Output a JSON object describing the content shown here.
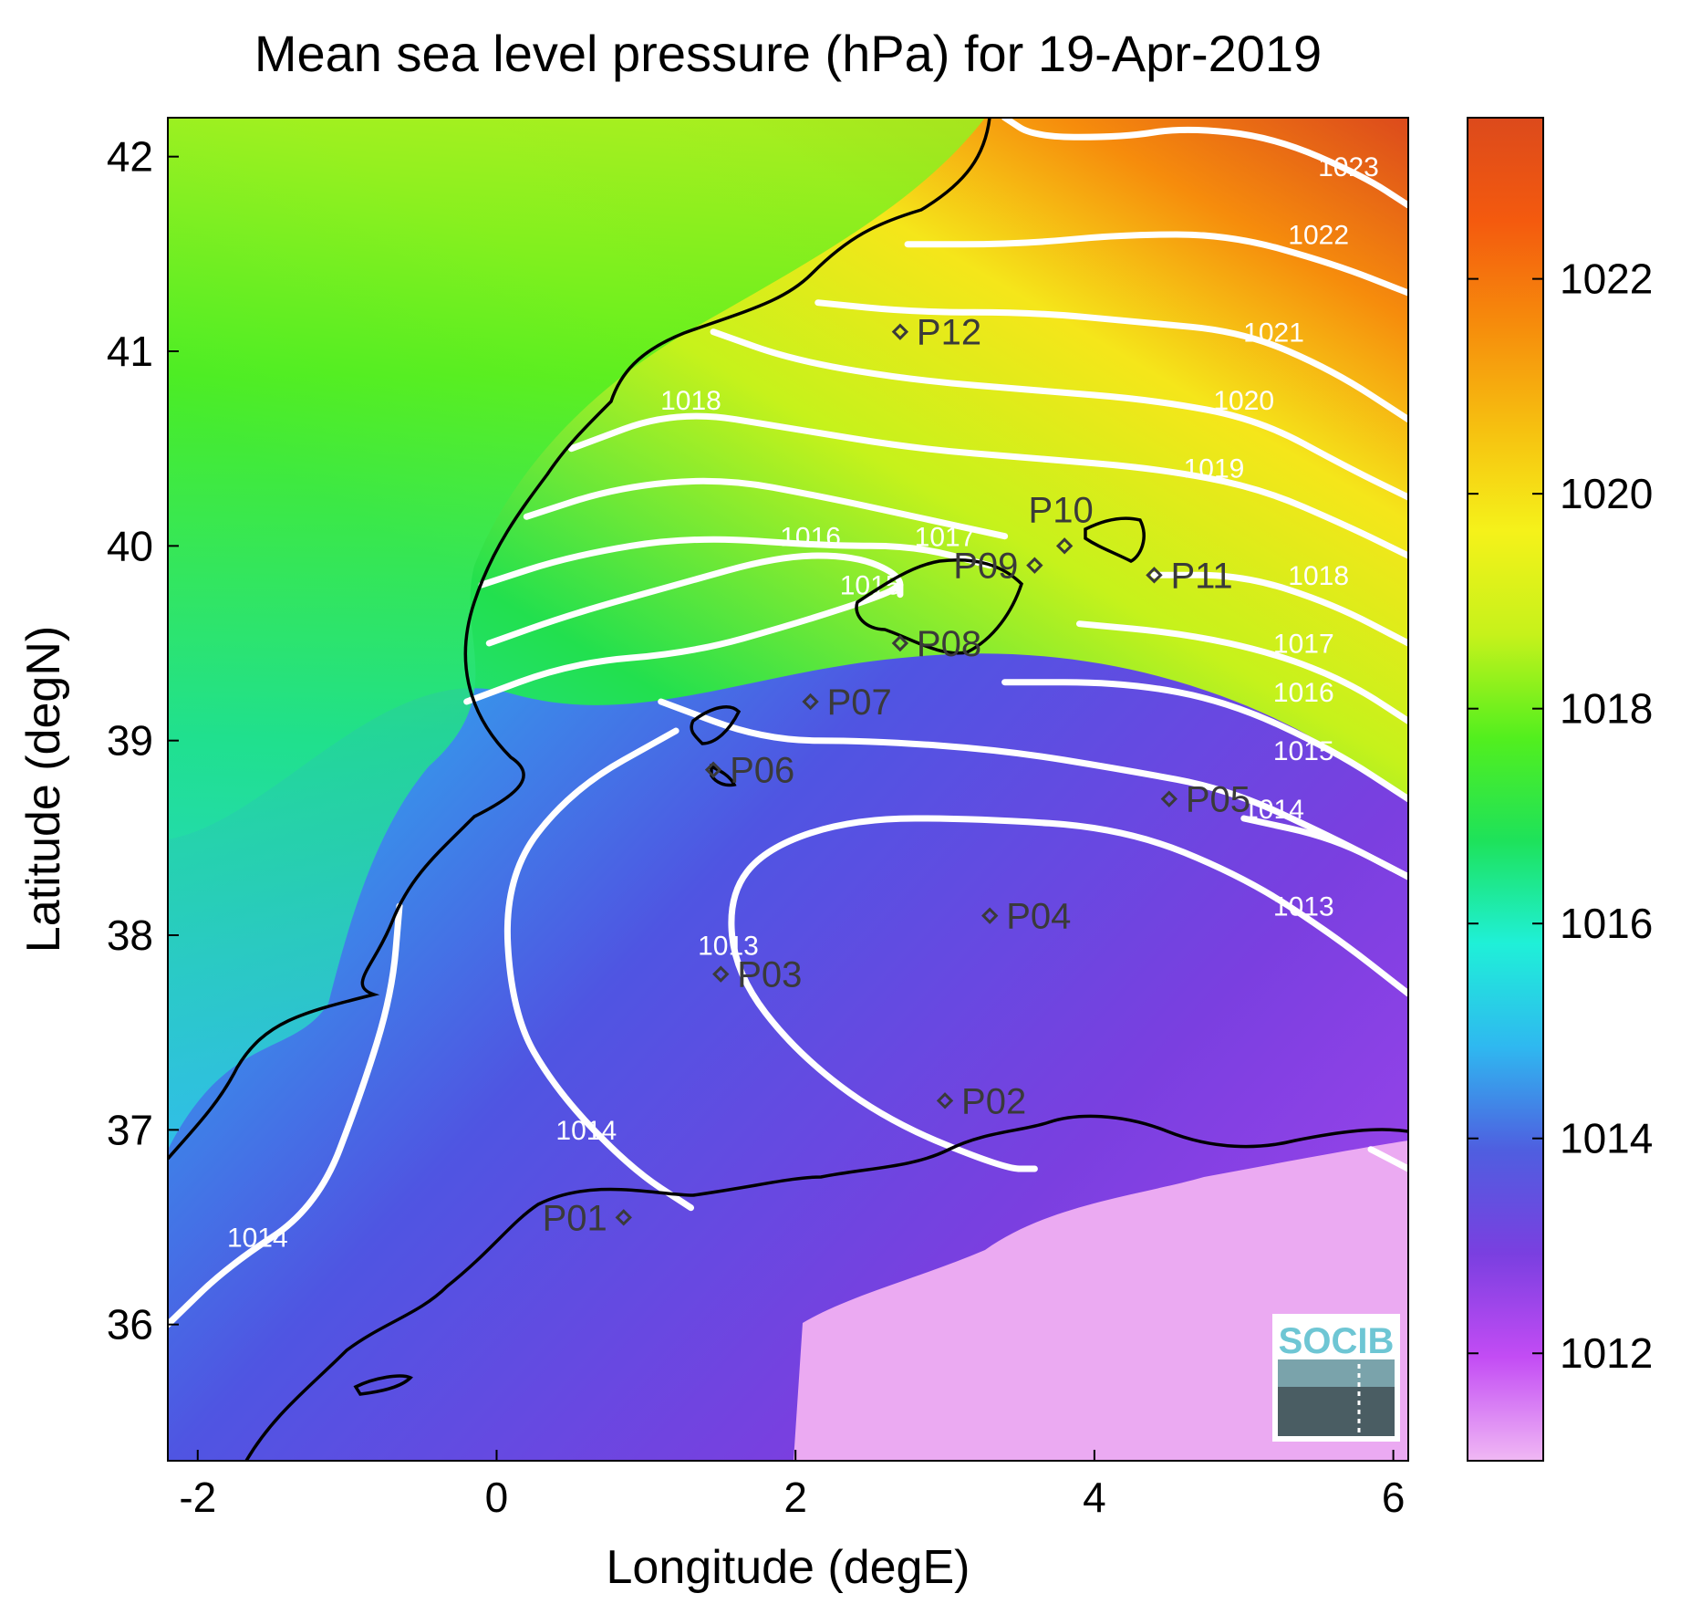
{
  "title": "Mean sea level pressure (hPa) for 19-Apr-2019",
  "xlabel": "Longitude (degE)",
  "ylabel": "Latitude (degN)",
  "x_ticks": [
    {
      "value": -2,
      "label": "-2"
    },
    {
      "value": 0,
      "label": "0"
    },
    {
      "value": 2,
      "label": "2"
    },
    {
      "value": 4,
      "label": "4"
    },
    {
      "value": 6,
      "label": "6"
    }
  ],
  "y_ticks": [
    {
      "value": 36,
      "label": "36"
    },
    {
      "value": 37,
      "label": "37"
    },
    {
      "value": 38,
      "label": "38"
    },
    {
      "value": 39,
      "label": "39"
    },
    {
      "value": 40,
      "label": "40"
    },
    {
      "value": 41,
      "label": "41"
    },
    {
      "value": 42,
      "label": "42"
    }
  ],
  "xlim": [
    -2.2,
    6.1
  ],
  "ylim": [
    35.3,
    42.2
  ],
  "colorbar": {
    "range": [
      1011.0,
      1023.5
    ],
    "ticks": [
      {
        "value": 1012,
        "label": "1012"
      },
      {
        "value": 1014,
        "label": "1014"
      },
      {
        "value": 1016,
        "label": "1016"
      },
      {
        "value": 1018,
        "label": "1018"
      },
      {
        "value": 1020,
        "label": "1020"
      },
      {
        "value": 1022,
        "label": "1022"
      }
    ],
    "colors": [
      "#f0b8f4",
      "#c34cf4",
      "#7a3fe0",
      "#4f5ee0",
      "#2fb8f0",
      "#1ff0d8",
      "#1ee25a",
      "#52ef1e",
      "#c6f21b",
      "#f5f21a",
      "#f6c010",
      "#f68c0c",
      "#f45a0e",
      "#dc4a1c"
    ]
  },
  "points": [
    {
      "name": "P01",
      "lon": 0.85,
      "lat": 36.55,
      "label_side": "left"
    },
    {
      "name": "P02",
      "lon": 3.0,
      "lat": 37.15,
      "label_side": "right"
    },
    {
      "name": "P03",
      "lon": 1.5,
      "lat": 37.8,
      "label_side": "right"
    },
    {
      "name": "P04",
      "lon": 3.3,
      "lat": 38.1,
      "label_side": "right"
    },
    {
      "name": "P05",
      "lon": 4.5,
      "lat": 38.7,
      "label_side": "right"
    },
    {
      "name": "P06",
      "lon": 1.45,
      "lat": 38.85,
      "label_side": "right"
    },
    {
      "name": "P07",
      "lon": 2.1,
      "lat": 39.2,
      "label_side": "right"
    },
    {
      "name": "P08",
      "lon": 2.7,
      "lat": 39.5,
      "label_side": "right"
    },
    {
      "name": "P09",
      "lon": 3.6,
      "lat": 39.9,
      "label_side": "left"
    },
    {
      "name": "P10",
      "lon": 3.8,
      "lat": 40.0,
      "label_side": "above"
    },
    {
      "name": "P11",
      "lon": 4.4,
      "lat": 39.85,
      "label_side": "right"
    },
    {
      "name": "P12",
      "lon": 2.7,
      "lat": 41.1,
      "label_side": "right"
    }
  ],
  "contours": [
    {
      "level": "1023",
      "label_lon": 5.7,
      "label_lat": 41.9,
      "path": [
        [
          3.4,
          42.2
        ],
        [
          3.6,
          42.1
        ],
        [
          4.2,
          42.1
        ],
        [
          4.6,
          42.15
        ],
        [
          5.2,
          42.1
        ],
        [
          5.8,
          41.9
        ],
        [
          6.1,
          41.75
        ]
      ]
    },
    {
      "level": "1022",
      "label_lon": 5.5,
      "label_lat": 41.55,
      "path": [
        [
          2.75,
          41.55
        ],
        [
          3.5,
          41.55
        ],
        [
          4.2,
          41.6
        ],
        [
          4.9,
          41.6
        ],
        [
          5.6,
          41.45
        ],
        [
          6.1,
          41.3
        ]
      ]
    },
    {
      "level": "1021",
      "label_lon": 5.2,
      "label_lat": 41.05,
      "path": [
        [
          2.15,
          41.25
        ],
        [
          2.8,
          41.2
        ],
        [
          3.6,
          41.2
        ],
        [
          4.3,
          41.15
        ],
        [
          5.0,
          41.1
        ],
        [
          5.6,
          40.9
        ],
        [
          6.1,
          40.65
        ]
      ]
    },
    {
      "level": "1020",
      "label_lon": 5.0,
      "label_lat": 40.7,
      "path": [
        [
          1.45,
          41.1
        ],
        [
          2.0,
          40.95
        ],
        [
          2.8,
          40.85
        ],
        [
          3.6,
          40.8
        ],
        [
          4.4,
          40.75
        ],
        [
          5.1,
          40.65
        ],
        [
          5.7,
          40.4
        ],
        [
          6.1,
          40.25
        ]
      ]
    },
    {
      "level": "1019",
      "label_lon": 4.8,
      "label_lat": 40.35,
      "path": [
        [
          0.5,
          40.5
        ],
        [
          1.2,
          40.7
        ],
        [
          2.0,
          40.6
        ],
        [
          2.8,
          40.5
        ],
        [
          3.6,
          40.45
        ],
        [
          4.4,
          40.4
        ],
        [
          5.1,
          40.3
        ],
        [
          5.7,
          40.1
        ],
        [
          6.1,
          39.95
        ]
      ]
    },
    {
      "level": "1018",
      "label_lon": 1.3,
      "label_lat": 40.7,
      "path": [
        [
          0.2,
          40.15
        ],
        [
          0.8,
          40.3
        ],
        [
          1.5,
          40.35
        ],
        [
          2.2,
          40.25
        ],
        [
          2.8,
          40.15
        ],
        [
          3.4,
          40.05
        ]
      ]
    },
    {
      "level": "1018",
      "label_lon": 5.5,
      "label_lat": 39.8,
      "path": [
        [
          4.4,
          39.85
        ],
        [
          5.0,
          39.85
        ],
        [
          5.6,
          39.7
        ],
        [
          6.1,
          39.5
        ]
      ]
    },
    {
      "level": "1017",
      "label_lon": 3.0,
      "label_lat": 40.0,
      "path": [
        [
          -0.1,
          39.8
        ],
        [
          0.5,
          39.95
        ],
        [
          1.3,
          40.05
        ],
        [
          2.2,
          40.0
        ],
        [
          2.8,
          40.0
        ],
        [
          3.3,
          39.9
        ]
      ]
    },
    {
      "level": "1017",
      "label_lon": 5.4,
      "label_lat": 39.45,
      "path": [
        [
          3.9,
          39.6
        ],
        [
          4.6,
          39.55
        ],
        [
          5.2,
          39.45
        ],
        [
          5.7,
          39.3
        ],
        [
          6.1,
          39.1
        ]
      ]
    },
    {
      "level": "1016",
      "label_lon": 2.1,
      "label_lat": 40.0,
      "path": [
        [
          -0.05,
          39.5
        ],
        [
          0.5,
          39.65
        ],
        [
          1.2,
          39.8
        ],
        [
          1.9,
          39.95
        ],
        [
          2.4,
          39.95
        ],
        [
          2.7,
          39.85
        ],
        [
          2.7,
          39.75
        ]
      ]
    },
    {
      "level": "1016",
      "label_lon": 5.4,
      "label_lat": 39.2,
      "path": [
        [
          3.4,
          39.3
        ],
        [
          4.2,
          39.3
        ],
        [
          4.9,
          39.2
        ],
        [
          5.6,
          38.95
        ],
        [
          6.1,
          38.7
        ]
      ]
    },
    {
      "level": "1015",
      "label_lon": 2.5,
      "label_lat": 39.75,
      "path": [
        [
          -0.2,
          39.2
        ],
        [
          0.5,
          39.4
        ],
        [
          1.3,
          39.45
        ],
        [
          2.0,
          39.6
        ],
        [
          2.6,
          39.75
        ],
        [
          2.7,
          39.8
        ]
      ]
    },
    {
      "level": "1015",
      "label_lon": 5.4,
      "label_lat": 38.9,
      "path": [
        [
          1.1,
          39.2
        ],
        [
          1.8,
          39.0
        ],
        [
          2.5,
          39.0
        ],
        [
          3.4,
          38.95
        ],
        [
          4.2,
          38.85
        ],
        [
          4.9,
          38.75
        ],
        [
          5.6,
          38.5
        ],
        [
          6.1,
          38.3
        ]
      ]
    },
    {
      "level": "1014",
      "label_lon": 5.2,
      "label_lat": 38.6,
      "path": [
        [
          1.2,
          39.05
        ],
        [
          0.5,
          38.75
        ],
        [
          0.05,
          38.3
        ],
        [
          0.1,
          37.6
        ],
        [
          0.4,
          37.2
        ],
        [
          0.9,
          36.8
        ],
        [
          1.3,
          36.6
        ]
      ]
    },
    {
      "level": "1014",
      "label_lon": 0.6,
      "label_lat": 36.95,
      "path": [
        [
          5.0,
          38.6
        ],
        [
          5.6,
          38.5
        ],
        [
          6.1,
          38.3
        ]
      ]
    },
    {
      "level": "1014",
      "label_lon": -1.6,
      "label_lat": 36.4,
      "path": [
        [
          -2.2,
          36.0
        ],
        [
          -1.8,
          36.3
        ],
        [
          -1.2,
          36.6
        ],
        [
          -0.9,
          37.2
        ],
        [
          -0.7,
          37.7
        ],
        [
          -0.65,
          38.15
        ]
      ]
    },
    {
      "level": "1013",
      "label_lon": 1.55,
      "label_lat": 37.9,
      "path": [
        [
          6.1,
          37.7
        ],
        [
          5.6,
          38.0
        ],
        [
          5.0,
          38.3
        ],
        [
          4.2,
          38.55
        ],
        [
          3.2,
          38.6
        ],
        [
          2.4,
          38.6
        ],
        [
          1.8,
          38.45
        ],
        [
          1.55,
          38.2
        ],
        [
          1.6,
          37.8
        ],
        [
          2.0,
          37.4
        ],
        [
          2.6,
          37.05
        ],
        [
          3.4,
          36.8
        ],
        [
          3.6,
          36.8
        ]
      ]
    },
    {
      "level": "1013",
      "label_lon": 5.4,
      "label_lat": 38.1,
      "path": [
        [
          5.85,
          36.9
        ],
        [
          6.1,
          36.8
        ]
      ]
    }
  ],
  "logo": {
    "text": "SOCIB"
  }
}
